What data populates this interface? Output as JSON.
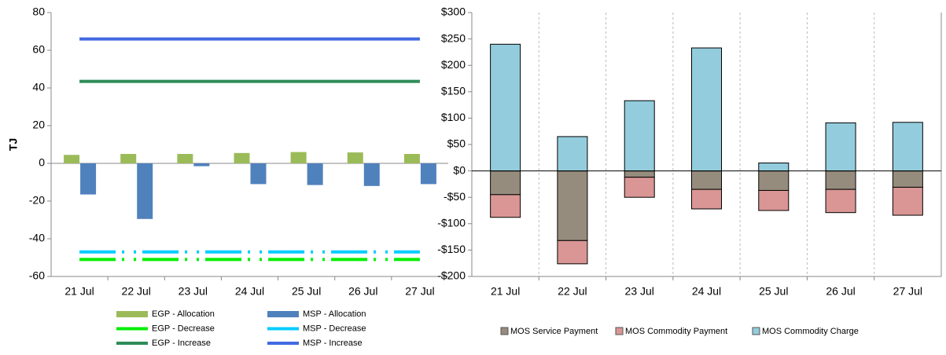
{
  "chart_data": [
    {
      "type": "bar",
      "y_label": "TJ",
      "categories": [
        "21 Jul",
        "22 Jul",
        "23 Jul",
        "24 Jul",
        "25 Jul",
        "26 Jul",
        "27 Jul"
      ],
      "ylim": [
        -60,
        80
      ],
      "yticks": [
        -60,
        -40,
        -20,
        0,
        20,
        40,
        60,
        80
      ],
      "series": [
        {
          "name": "EGP - Allocation",
          "type": "bar",
          "color": "#9bbb59",
          "values": [
            4.5,
            5,
            5,
            5.5,
            6,
            5.8,
            5
          ]
        },
        {
          "name": "MSP - Allocation",
          "type": "bar",
          "color": "#4f81bd",
          "values": [
            -16.5,
            -29.5,
            -1.5,
            -11,
            -11.5,
            -12,
            -11
          ]
        },
        {
          "name": "EGP - Decrease",
          "type": "line",
          "style": "dash-dot",
          "color": "#00ee00",
          "values": [
            -51,
            -51,
            -51,
            -51,
            -51,
            -51,
            -51
          ]
        },
        {
          "name": "MSP - Decrease",
          "type": "line",
          "style": "dash-dot",
          "color": "#00ccff",
          "values": [
            -47,
            -47,
            -47,
            -47,
            -47,
            -47,
            -47
          ]
        },
        {
          "name": "EGP - Increase",
          "type": "line",
          "style": "solid",
          "color": "#2e8b57",
          "values": [
            43.5,
            43.5,
            43.5,
            43.5,
            43.5,
            43.5,
            43.5
          ]
        },
        {
          "name": "MSP - Increase",
          "type": "line",
          "style": "solid",
          "color": "#4169e1",
          "values": [
            66,
            66,
            66,
            66,
            66,
            66,
            66
          ]
        }
      ]
    },
    {
      "type": "stacked_bar",
      "categories": [
        "21 Jul",
        "22 Jul",
        "23 Jul",
        "24 Jul",
        "25 Jul",
        "26 Jul",
        "27 Jul"
      ],
      "ylim": [
        -200,
        300
      ],
      "yticks": [
        {
          "value": -200,
          "label": "-$200"
        },
        {
          "value": -150,
          "label": "-$150"
        },
        {
          "value": -100,
          "label": "-$100"
        },
        {
          "value": -50,
          "label": "-$50"
        },
        {
          "value": 0,
          "label": "$0"
        },
        {
          "value": 50,
          "label": "$50"
        },
        {
          "value": 100,
          "label": "$100"
        },
        {
          "value": 150,
          "label": "$150"
        },
        {
          "value": 200,
          "label": "$200"
        },
        {
          "value": 250,
          "label": "$250"
        },
        {
          "value": 300,
          "label": "$300"
        }
      ],
      "vertical_grid": true,
      "series": [
        {
          "name": "MOS Service Payment",
          "color": "#968c7e",
          "values": [
            -45,
            -132,
            -12,
            -35,
            -37,
            -35,
            -31
          ]
        },
        {
          "name": "MOS Commodity Payment",
          "color": "#d99694",
          "values": [
            -43,
            -44,
            -38,
            -37,
            -38,
            -44,
            -53
          ]
        },
        {
          "name": "MOS Commodity Charge",
          "color": "#93cddd",
          "values": [
            240,
            65,
            133,
            233,
            15,
            91,
            92
          ]
        }
      ]
    }
  ]
}
